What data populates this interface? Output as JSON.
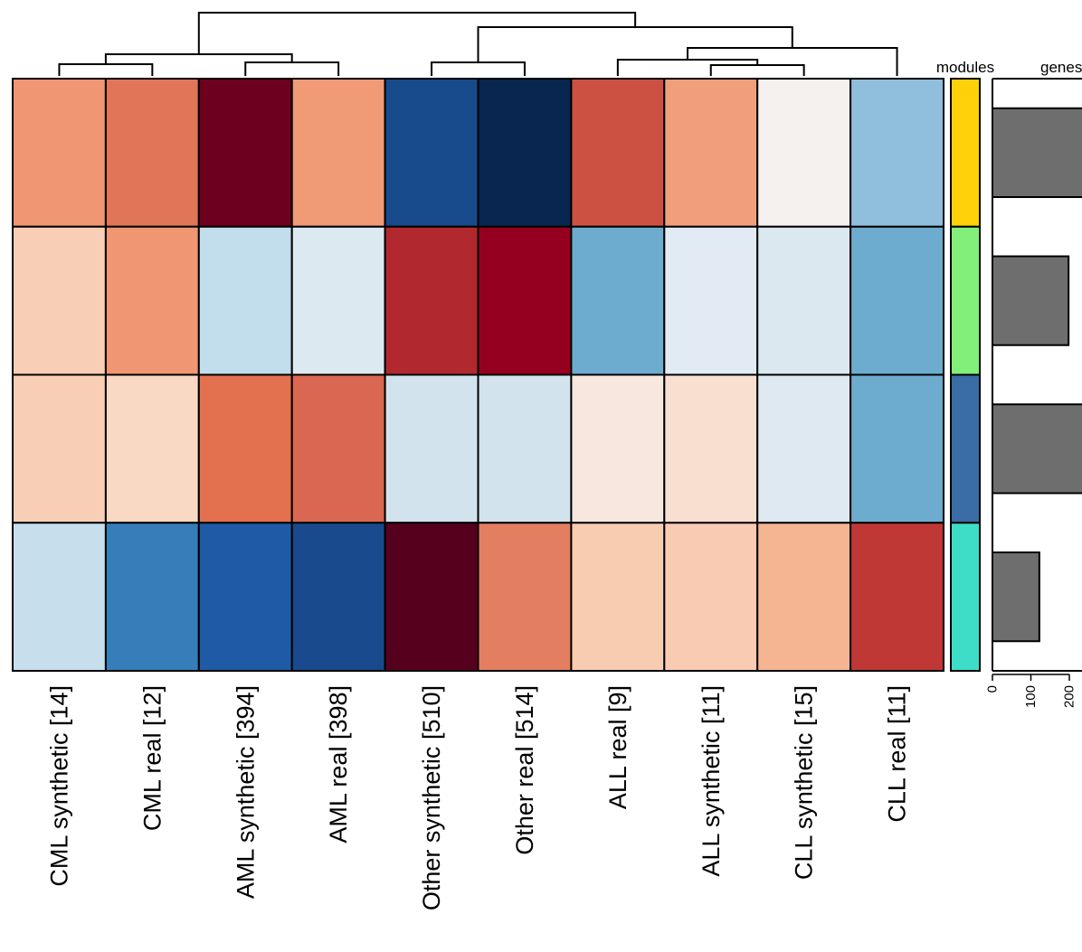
{
  "chart_data": {
    "type": "heatmap",
    "columns": [
      "CML synthetic  [14]",
      "CML real  [12]",
      "AML synthetic  [394]",
      "AML real  [398]",
      "Other synthetic  [510]",
      "Other real  [514]",
      "ALL real  [9]",
      "ALL synthetic  [11]",
      "CLL synthetic  [15]",
      "CLL real  [11]"
    ],
    "rows": [
      {
        "module_color": "#FFD10A",
        "genes": 245,
        "cells": [
          "#F09672",
          "#E07558",
          "#6D001F",
          "#F09A76",
          "#174B8B",
          "#08264F",
          "#CD5142",
          "#F19F7A",
          "#F5F1EF",
          "#90BFDD"
        ]
      },
      {
        "module_color": "#83EF7B",
        "genes": 198,
        "cells": [
          "#F9CEB6",
          "#F09672",
          "#C2DDEB",
          "#DDE9F0",
          "#B2282F",
          "#960020",
          "#6DACCF",
          "#E2EBF3",
          "#DCE8F0",
          "#6DACCF"
        ]
      },
      {
        "module_color": "#3A6CA5",
        "genes": 240,
        "cells": [
          "#F9CEB6",
          "#F9D8C4",
          "#E3714F",
          "#D96752",
          "#D2E3EE",
          "#D2E3EE",
          "#F7E7DE",
          "#F9DFD0",
          "#DEE9F1",
          "#6DACCF"
        ]
      },
      {
        "module_color": "#3DDDC8",
        "genes": 122,
        "cells": [
          "#C7DFED",
          "#357EBA",
          "#1F5AA6",
          "#184A8D",
          "#55001C",
          "#E37E61",
          "#F8CCB1",
          "#F9CBB2",
          "#F5B592",
          "#C03836"
        ]
      }
    ],
    "dendrogram_merges": [
      [
        "CML synthetic  [14]",
        "CML real  [12]"
      ],
      [
        "AML synthetic  [394]",
        "AML real  [398]"
      ],
      [
        "Other synthetic  [510]",
        "Other real  [514]"
      ],
      [
        "ALL synthetic  [11]",
        "CLL synthetic  [15]"
      ]
    ],
    "side_labels": {
      "modules": "modules",
      "genes": "genes"
    },
    "genes_axis": {
      "ticks": [
        0,
        100,
        200
      ],
      "range": [
        0,
        250
      ]
    }
  }
}
